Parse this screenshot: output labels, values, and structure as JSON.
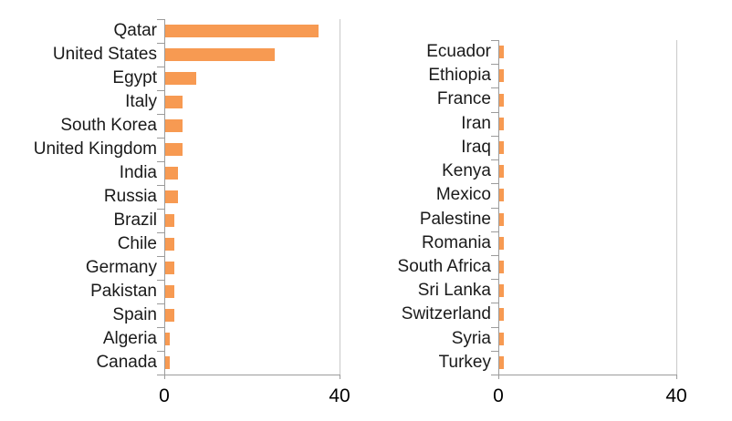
{
  "figure": {
    "background_color": "#ffffff",
    "bar_color": "#f79a52",
    "axis_color": "#9b9b9b",
    "plot_border_color": "#c9c9c9",
    "label_color": "#1a1a1a"
  },
  "chart_data": [
    {
      "type": "bar",
      "orientation": "horizontal",
      "title": "",
      "xlabel": "",
      "ylabel": "",
      "categories": [
        "Qatar",
        "United States",
        "Egypt",
        "Italy",
        "South Korea",
        "United Kingdom",
        "India",
        "Russia",
        "Brazil",
        "Chile",
        "Germany",
        "Pakistan",
        "Spain",
        "Algeria",
        "Canada"
      ],
      "values": [
        35,
        25,
        7,
        4,
        4,
        4,
        3,
        3,
        2,
        2,
        2,
        2,
        2,
        1,
        1
      ],
      "xlim": [
        0,
        40
      ],
      "xticks": [
        "0",
        "40"
      ],
      "grid": false,
      "legend": null,
      "bar_color": "#f79a52"
    },
    {
      "type": "bar",
      "orientation": "horizontal",
      "title": "",
      "xlabel": "",
      "ylabel": "",
      "categories": [
        "Ecuador",
        "Ethiopia",
        "France",
        "Iran",
        "Iraq",
        "Kenya",
        "Mexico",
        "Palestine",
        "Romania",
        "South Africa",
        "Sri Lanka",
        "Switzerland",
        "Syria",
        "Turkey"
      ],
      "values": [
        1,
        1,
        1,
        1,
        1,
        1,
        1,
        1,
        1,
        1,
        1,
        1,
        1,
        1
      ],
      "xlim": [
        0,
        40
      ],
      "xticks": [
        "0",
        "40"
      ],
      "grid": false,
      "legend": null,
      "bar_color": "#f79a52"
    }
  ]
}
